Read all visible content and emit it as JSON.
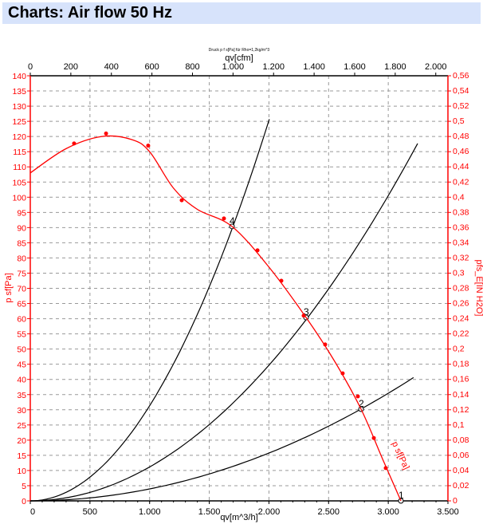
{
  "header": {
    "title": "Charts: Air flow 50 Hz"
  },
  "chart_data": {
    "type": "line",
    "title": "Druck p f s[Pa] für Rho=1,2kg/m^3",
    "xlabel": "qv[m^3/h]",
    "x2label": "qv[cfm]",
    "ylabel": "p sf[Pa]",
    "y2label": "pfs_E[IN H2O]",
    "xlim": [
      0,
      3500
    ],
    "ylim": [
      0,
      140
    ],
    "x2lim": [
      0,
      2060
    ],
    "y2lim": [
      0,
      0.56
    ],
    "xticks": [
      "0",
      "500",
      "1.000",
      "1.500",
      "2.000",
      "2.500",
      "3.000",
      "3.500"
    ],
    "x2ticks": [
      "0",
      "200",
      "400",
      "600",
      "800",
      "1.000",
      "1.200",
      "1.400",
      "1.600",
      "1.800",
      "2.000"
    ],
    "yticks": [
      "0",
      "5",
      "10",
      "15",
      "20",
      "25",
      "30",
      "35",
      "40",
      "45",
      "50",
      "55",
      "60",
      "65",
      "70",
      "75",
      "80",
      "85",
      "90",
      "95",
      "100",
      "105",
      "110",
      "115",
      "120",
      "125",
      "130",
      "135",
      "140"
    ],
    "y2ticks": [
      "0",
      "0,02",
      "0,04",
      "0,06",
      "0,08",
      "0,1",
      "0,12",
      "0,14",
      "0,16",
      "0,18",
      "0,2",
      "0,22",
      "0,24",
      "0,26",
      "0,28",
      "0,3",
      "0,32",
      "0,34",
      "0,36",
      "0,38",
      "0,4",
      "0,42",
      "0,44",
      "0,46",
      "0,48",
      "0,5",
      "0,52",
      "0,54",
      "0,56"
    ],
    "grid": true,
    "fan_curve": {
      "name": "p sf[Pa]",
      "color": "#ff0000",
      "points": [
        [
          0,
          108
        ],
        [
          300,
          116
        ],
        [
          600,
          120
        ],
        [
          850,
          119
        ],
        [
          1000,
          115
        ],
        [
          1200,
          103
        ],
        [
          1400,
          96
        ],
        [
          1690,
          90.4
        ],
        [
          2000,
          77
        ],
        [
          2311,
          60.4
        ],
        [
          2550,
          46
        ],
        [
          2772,
          30.2
        ],
        [
          2950,
          14
        ],
        [
          3106,
          0
        ]
      ],
      "markers": [
        [
          367,
          117.7
        ],
        [
          635,
          121
        ],
        [
          988,
          117
        ],
        [
          1269,
          99
        ],
        [
          1623,
          93
        ],
        [
          1904,
          82.5
        ],
        [
          2104,
          72.5
        ],
        [
          2291,
          61
        ],
        [
          2471,
          51.5
        ],
        [
          2618,
          42
        ],
        [
          2745,
          34.4
        ],
        [
          2879,
          20.7
        ],
        [
          2979,
          10.8
        ]
      ]
    },
    "system_curves": [
      {
        "label": "4",
        "op": [
          1690,
          90.4
        ],
        "qmax": 2037,
        "pmax": 130
      },
      {
        "label": "3",
        "op": [
          2311,
          60.4
        ],
        "qmax": 3246,
        "pmax": 117.7
      },
      {
        "label": "2",
        "op": [
          2772,
          30.2
        ],
        "qmax": 3266,
        "pmax": 42
      },
      {
        "label": "1",
        "op": [
          3106,
          0
        ],
        "qmax": 3106,
        "pmax": 0
      }
    ]
  }
}
